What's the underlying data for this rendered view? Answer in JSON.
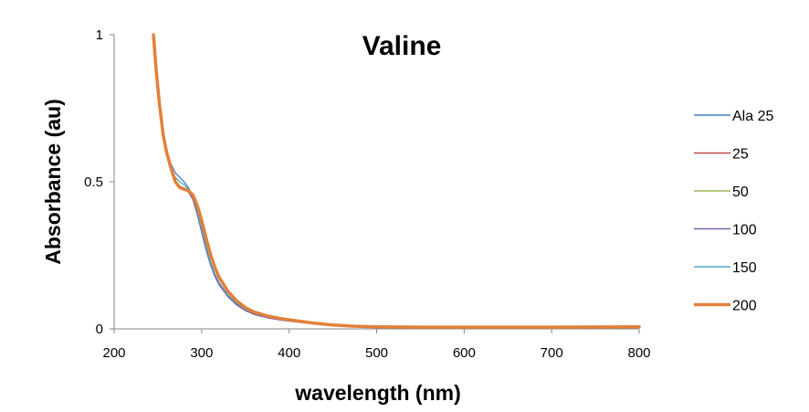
{
  "chart_data": {
    "type": "line",
    "title": "Valine",
    "xlabel": "wavelength (nm)",
    "ylabel": "Absorbance (au)",
    "xlim": [
      200,
      800
    ],
    "ylim": [
      0,
      1
    ],
    "x_ticks": [
      200,
      300,
      400,
      500,
      600,
      700,
      800
    ],
    "y_ticks": [
      {
        "value": 0,
        "label": "0"
      },
      {
        "value": 0.5,
        "label": "0.5"
      },
      {
        "value": 1,
        "label": "1"
      }
    ],
    "grid": false,
    "legend_position": "right",
    "series": [
      {
        "name": "Ala 25",
        "color": "#4a7ebb",
        "width": "thin",
        "points": [
          [
            245,
            1.0
          ],
          [
            248,
            0.88
          ],
          [
            252,
            0.76
          ],
          [
            256,
            0.67
          ],
          [
            260,
            0.61
          ],
          [
            265,
            0.56
          ],
          [
            270,
            0.53
          ],
          [
            275,
            0.515
          ],
          [
            280,
            0.5
          ],
          [
            285,
            0.48
          ],
          [
            290,
            0.45
          ],
          [
            295,
            0.4
          ],
          [
            300,
            0.34
          ],
          [
            305,
            0.28
          ],
          [
            310,
            0.225
          ],
          [
            315,
            0.185
          ],
          [
            320,
            0.155
          ],
          [
            330,
            0.115
          ],
          [
            340,
            0.085
          ],
          [
            350,
            0.065
          ],
          [
            360,
            0.052
          ],
          [
            375,
            0.04
          ],
          [
            390,
            0.032
          ],
          [
            410,
            0.025
          ],
          [
            430,
            0.018
          ],
          [
            450,
            0.012
          ],
          [
            475,
            0.008
          ],
          [
            500,
            0.006
          ],
          [
            550,
            0.005
          ],
          [
            600,
            0.005
          ],
          [
            700,
            0.005
          ],
          [
            800,
            0.006
          ]
        ]
      },
      {
        "name": "25",
        "color": "#be4b48",
        "width": "thin",
        "points": [
          [
            245,
            1.0
          ],
          [
            248,
            0.88
          ],
          [
            252,
            0.76
          ],
          [
            256,
            0.66
          ],
          [
            260,
            0.6
          ],
          [
            265,
            0.54
          ],
          [
            270,
            0.5
          ],
          [
            275,
            0.48
          ],
          [
            280,
            0.475
          ],
          [
            285,
            0.465
          ],
          [
            290,
            0.44
          ],
          [
            295,
            0.39
          ],
          [
            300,
            0.33
          ],
          [
            305,
            0.27
          ],
          [
            310,
            0.22
          ],
          [
            315,
            0.18
          ],
          [
            320,
            0.15
          ],
          [
            330,
            0.11
          ],
          [
            340,
            0.082
          ],
          [
            350,
            0.063
          ],
          [
            360,
            0.05
          ],
          [
            375,
            0.039
          ],
          [
            390,
            0.031
          ],
          [
            410,
            0.024
          ],
          [
            430,
            0.017
          ],
          [
            450,
            0.011
          ],
          [
            475,
            0.008
          ],
          [
            500,
            0.006
          ],
          [
            550,
            0.005
          ],
          [
            600,
            0.005
          ],
          [
            700,
            0.005
          ],
          [
            800,
            0.006
          ]
        ]
      },
      {
        "name": "50",
        "color": "#98b954",
        "width": "thin",
        "points": [
          [
            245,
            1.0
          ],
          [
            248,
            0.88
          ],
          [
            252,
            0.76
          ],
          [
            256,
            0.66
          ],
          [
            260,
            0.6
          ],
          [
            265,
            0.545
          ],
          [
            270,
            0.505
          ],
          [
            275,
            0.485
          ],
          [
            280,
            0.48
          ],
          [
            285,
            0.47
          ],
          [
            290,
            0.445
          ],
          [
            295,
            0.395
          ],
          [
            300,
            0.335
          ],
          [
            305,
            0.275
          ],
          [
            310,
            0.225
          ],
          [
            315,
            0.185
          ],
          [
            320,
            0.155
          ],
          [
            330,
            0.113
          ],
          [
            340,
            0.084
          ],
          [
            350,
            0.064
          ],
          [
            360,
            0.051
          ],
          [
            375,
            0.04
          ],
          [
            390,
            0.032
          ],
          [
            410,
            0.025
          ],
          [
            430,
            0.018
          ],
          [
            450,
            0.012
          ],
          [
            475,
            0.008
          ],
          [
            500,
            0.006
          ],
          [
            550,
            0.005
          ],
          [
            600,
            0.005
          ],
          [
            700,
            0.005
          ],
          [
            800,
            0.006
          ]
        ]
      },
      {
        "name": "100",
        "color": "#7d60a0",
        "width": "thin",
        "points": [
          [
            245,
            1.0
          ],
          [
            248,
            0.88
          ],
          [
            252,
            0.76
          ],
          [
            256,
            0.66
          ],
          [
            260,
            0.6
          ],
          [
            265,
            0.54
          ],
          [
            270,
            0.5
          ],
          [
            275,
            0.48
          ],
          [
            280,
            0.475
          ],
          [
            285,
            0.465
          ],
          [
            290,
            0.44
          ],
          [
            295,
            0.39
          ],
          [
            300,
            0.33
          ],
          [
            305,
            0.27
          ],
          [
            310,
            0.22
          ],
          [
            315,
            0.18
          ],
          [
            320,
            0.15
          ],
          [
            330,
            0.11
          ],
          [
            340,
            0.081
          ],
          [
            350,
            0.062
          ],
          [
            360,
            0.049
          ],
          [
            375,
            0.038
          ],
          [
            390,
            0.03
          ],
          [
            410,
            0.023
          ],
          [
            430,
            0.016
          ],
          [
            450,
            0.011
          ],
          [
            475,
            0.007
          ],
          [
            500,
            0.006
          ],
          [
            550,
            0.005
          ],
          [
            600,
            0.005
          ],
          [
            700,
            0.005
          ],
          [
            800,
            0.006
          ]
        ]
      },
      {
        "name": "150",
        "color": "#46aac5",
        "width": "thin",
        "points": [
          [
            245,
            1.0
          ],
          [
            248,
            0.88
          ],
          [
            252,
            0.76
          ],
          [
            256,
            0.665
          ],
          [
            260,
            0.605
          ],
          [
            265,
            0.55
          ],
          [
            270,
            0.515
          ],
          [
            275,
            0.5
          ],
          [
            280,
            0.49
          ],
          [
            285,
            0.475
          ],
          [
            290,
            0.45
          ],
          [
            295,
            0.4
          ],
          [
            300,
            0.34
          ],
          [
            305,
            0.28
          ],
          [
            310,
            0.228
          ],
          [
            315,
            0.188
          ],
          [
            320,
            0.157
          ],
          [
            330,
            0.115
          ],
          [
            340,
            0.086
          ],
          [
            350,
            0.066
          ],
          [
            360,
            0.053
          ],
          [
            375,
            0.041
          ],
          [
            390,
            0.033
          ],
          [
            410,
            0.025
          ],
          [
            430,
            0.018
          ],
          [
            450,
            0.012
          ],
          [
            475,
            0.008
          ],
          [
            500,
            0.006
          ],
          [
            550,
            0.005
          ],
          [
            600,
            0.005
          ],
          [
            700,
            0.005
          ],
          [
            800,
            0.006
          ]
        ]
      },
      {
        "name": "200",
        "color": "#e2803a",
        "width": "thick",
        "points": [
          [
            245,
            1.0
          ],
          [
            248,
            0.88
          ],
          [
            252,
            0.76
          ],
          [
            256,
            0.66
          ],
          [
            260,
            0.6
          ],
          [
            265,
            0.545
          ],
          [
            270,
            0.5
          ],
          [
            275,
            0.48
          ],
          [
            280,
            0.475
          ],
          [
            285,
            0.47
          ],
          [
            290,
            0.455
          ],
          [
            295,
            0.42
          ],
          [
            300,
            0.37
          ],
          [
            305,
            0.31
          ],
          [
            310,
            0.255
          ],
          [
            315,
            0.21
          ],
          [
            320,
            0.175
          ],
          [
            330,
            0.128
          ],
          [
            340,
            0.095
          ],
          [
            350,
            0.072
          ],
          [
            360,
            0.057
          ],
          [
            375,
            0.044
          ],
          [
            390,
            0.035
          ],
          [
            410,
            0.027
          ],
          [
            430,
            0.019
          ],
          [
            450,
            0.013
          ],
          [
            475,
            0.009
          ],
          [
            500,
            0.007
          ],
          [
            550,
            0.006
          ],
          [
            600,
            0.006
          ],
          [
            700,
            0.006
          ],
          [
            800,
            0.007
          ]
        ]
      }
    ]
  }
}
